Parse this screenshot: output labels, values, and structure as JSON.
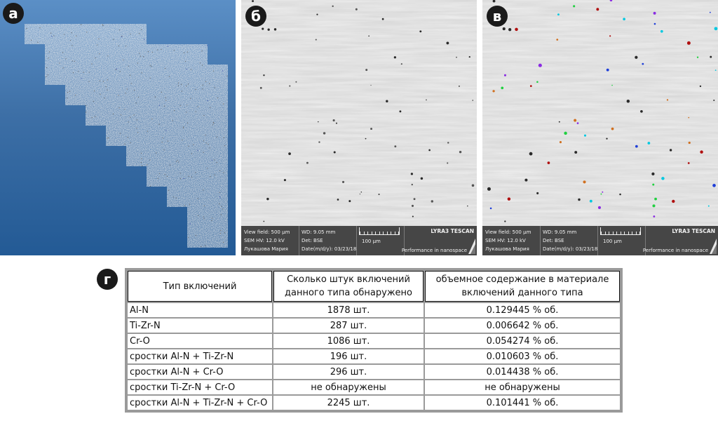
{
  "panels": {
    "a": {
      "label": "а"
    },
    "b": {
      "label": "б"
    },
    "c": {
      "label": "в"
    },
    "d": {
      "label": "г"
    }
  },
  "sem_info": {
    "view_field": "View field: 500 µm",
    "wd": "WD: 9.05 mm",
    "hv": "SEM HV: 12.0 kV",
    "det": "Det: BSE",
    "operator": "Лукашова Мария",
    "date": "Date(m/d/y): 03/23/18",
    "scale_label": "100 µm",
    "brand": "LYRA3 TESCAN",
    "tagline": "Performance in nanospace"
  },
  "table": {
    "headers": [
      "Тип включений",
      "Сколько штук включений данного типа обнаружено",
      "объемное содержание в материале включений данного типа"
    ],
    "rows": [
      [
        "Al-N",
        "1878 шт.",
        "0.129445 % об."
      ],
      [
        "Ti-Zr-N",
        "287  шт.",
        "0.006642  % об."
      ],
      [
        "Cr-O",
        "1086  шт.",
        "0.054274  % об."
      ],
      [
        "сростки Al-N + Ti-Zr-N",
        "196 шт.",
        "0.010603  % об."
      ],
      [
        "сростки Al-N + Cr-O",
        "296 шт.",
        "0.014438  % об."
      ],
      [
        "сростки Ti-Zr-N + Cr-O",
        "не обнаружены",
        "не обнаружены"
      ],
      [
        "сростки Al-N + Ti-Zr-N + Cr-O",
        "2245 шт.",
        "0.101441  % об."
      ]
    ]
  },
  "colors": {
    "background_blue": "#3d6fa6",
    "infobar": "#464646",
    "sem_gray": "#d6d6d6",
    "table_border": "#9a9a9a"
  }
}
